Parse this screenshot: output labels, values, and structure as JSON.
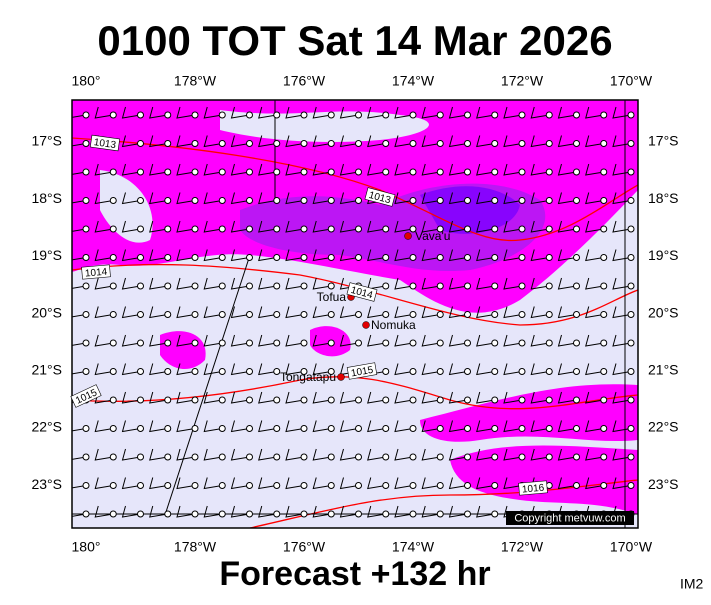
{
  "header": {
    "title": "0100 TOT Sat 14 Mar 2026"
  },
  "map": {
    "lon_labels": [
      "180°",
      "178°W",
      "176°W",
      "174°W",
      "172°W",
      "170°W"
    ],
    "lat_labels": [
      "17°S",
      "18°S",
      "19°S",
      "20°S",
      "21°S",
      "22°S",
      "23°S"
    ],
    "places": [
      {
        "label": "Vava'u"
      },
      {
        "label": "Tofua"
      },
      {
        "label": "Nomuka"
      },
      {
        "label": "Tongatapu"
      }
    ],
    "isobar_labels": [
      "1013",
      "1013",
      "1014",
      "1014",
      "1015",
      "1015",
      "1016"
    ],
    "copyright": "Copyright metvuw.com"
  },
  "footer": {
    "forecast": "Forecast +132 hr",
    "code": "IM2"
  }
}
